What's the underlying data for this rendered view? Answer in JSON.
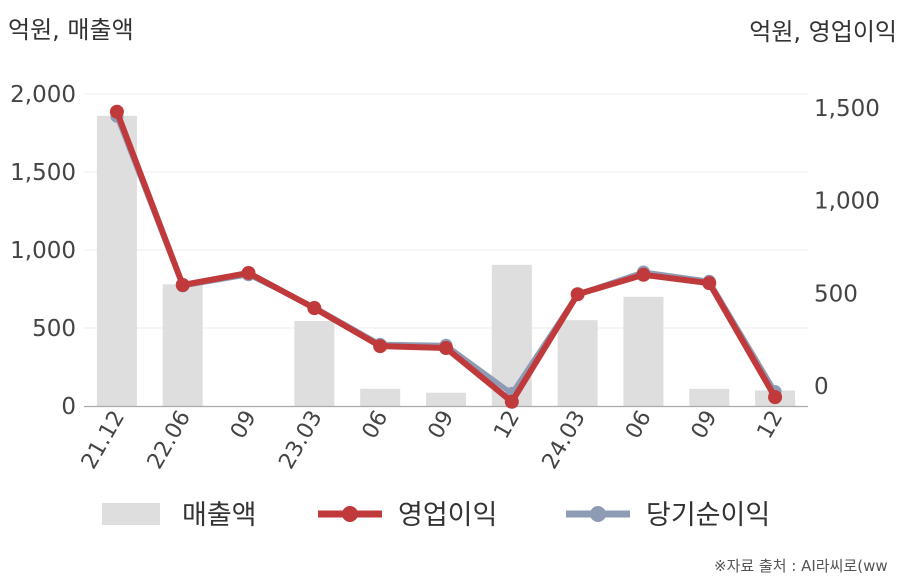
{
  "chart_data": {
    "type": "bar+line",
    "categories": [
      "21.12",
      "22.06",
      "09",
      "23.03",
      "06",
      "09",
      "12",
      "24.03",
      "06",
      "09",
      "12"
    ],
    "left_axis": {
      "unit_label": "억원, 매출액",
      "ylim": [
        0,
        2000
      ],
      "ticks": [
        "0",
        "500",
        "1,000",
        "1,500",
        "2,000"
      ]
    },
    "right_axis": {
      "unit_label": "억원, 영업이익",
      "ylim": [
        -100,
        1600
      ],
      "ticks": [
        "0",
        "500",
        "1,000",
        "1,500"
      ]
    },
    "series": [
      {
        "name": "매출액",
        "kind": "bar",
        "axis": "left",
        "color": "#dedede",
        "values": [
          1860,
          780,
          null,
          545,
          110,
          85,
          905,
          550,
          700,
          110,
          100
        ]
      },
      {
        "name": "영업이익",
        "kind": "line",
        "axis": "right",
        "color": "#c0393b",
        "values": [
          1480,
          545,
          610,
          420,
          215,
          205,
          -85,
          495,
          600,
          555,
          -60
        ]
      },
      {
        "name": "당기순이익",
        "kind": "line",
        "axis": "right",
        "color": "#8e9bb5",
        "values": [
          1455,
          540,
          600,
          425,
          225,
          220,
          -40,
          495,
          615,
          565,
          -30
        ]
      }
    ],
    "grid": true,
    "legend_position": "bottom"
  },
  "source_note": "※자료 출처 : AI라씨로(ww"
}
